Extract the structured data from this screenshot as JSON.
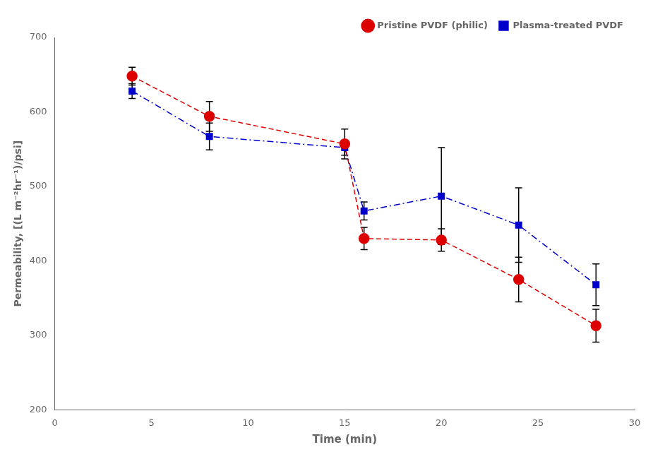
{
  "chart_data": {
    "type": "line",
    "xlabel": "Time (min)",
    "ylabel": "Permeability, [(L m⁻²hr⁻¹)/psi]",
    "x": [
      4,
      8,
      15,
      16,
      20,
      24,
      28
    ],
    "series": [
      {
        "name": "Pristine PVDF (philic)",
        "color": "#dd0000",
        "values": [
          648,
          594,
          557,
          430,
          428,
          375,
          313
        ],
        "yerr": [
          12,
          20,
          20,
          15,
          15,
          30,
          22
        ],
        "marker": "circle",
        "line_style": "dashed"
      },
      {
        "name": "Plasma-treated PVDF",
        "color": "#0000cc",
        "values": [
          628,
          567,
          552,
          467,
          487,
          448,
          368
        ],
        "yerr": [
          10,
          18,
          10,
          12,
          65,
          50,
          28
        ],
        "marker": "square",
        "line_style": "dashdot"
      }
    ],
    "xlim": [
      0,
      30
    ],
    "ylim": [
      200,
      700
    ],
    "xticks": [
      0,
      5,
      10,
      15,
      20,
      25,
      30
    ],
    "yticks": [
      200,
      300,
      400,
      500,
      600,
      700
    ],
    "legend": "upper right",
    "grid": false
  }
}
